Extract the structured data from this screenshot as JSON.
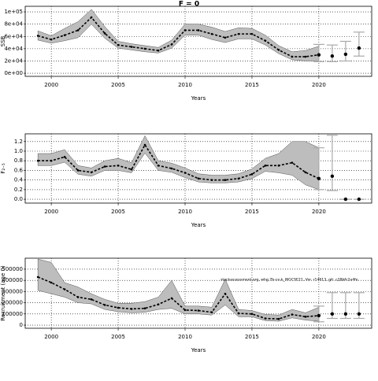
{
  "title": "F = 0",
  "chart_data": [
    {
      "type": "line",
      "y_label": "SSB",
      "x_label": "Years",
      "x": [
        1999,
        2000,
        2001,
        2002,
        2003,
        2004,
        2005,
        2006,
        2007,
        2008,
        2009,
        2010,
        2011,
        2012,
        2013,
        2014,
        2015,
        2016,
        2017,
        2018,
        2019,
        2020
      ],
      "values": [
        61000,
        55000,
        62000,
        70000,
        91000,
        65000,
        46000,
        43000,
        40000,
        37000,
        47000,
        70000,
        70000,
        64000,
        58000,
        64000,
        64000,
        53000,
        38000,
        27000,
        27000,
        30000
      ],
      "lower": [
        54000,
        49000,
        53000,
        58000,
        80000,
        57000,
        41000,
        38000,
        35000,
        33000,
        41000,
        62000,
        62000,
        55000,
        50000,
        56000,
        56000,
        46000,
        32000,
        22000,
        20000,
        20000
      ],
      "upper": [
        69000,
        61000,
        73000,
        84000,
        104000,
        76000,
        52000,
        48000,
        45000,
        42000,
        54000,
        80000,
        80000,
        75000,
        68000,
        74000,
        73000,
        62000,
        45000,
        35000,
        37000,
        44000
      ],
      "projection": {
        "x": [
          2020,
          2021,
          2022,
          2023
        ],
        "values": [
          30000,
          28000,
          31000,
          41000
        ],
        "lower": [
          19000,
          19000,
          20000,
          28000
        ],
        "upper": [
          47000,
          46000,
          52000,
          67000
        ]
      },
      "xlim": [
        1998.05,
        2023.95
      ],
      "xticks": [
        2000,
        2005,
        2010,
        2015,
        2020
      ],
      "ylim": [
        -5000,
        109000
      ],
      "yticks": [
        {
          "value": 0,
          "label": "0e+00"
        },
        {
          "value": 20000,
          "label": "2e+04"
        },
        {
          "value": 40000,
          "label": "4e+04"
        },
        {
          "value": 60000,
          "label": "6e+04"
        },
        {
          "value": 80000,
          "label": "8e+04"
        },
        {
          "value": 100000,
          "label": "1e+05"
        }
      ],
      "grid": true,
      "band_color": "#bdbdbd",
      "line_color": "#000000",
      "errorbar_color": "#a9a9a9"
    },
    {
      "type": "line",
      "y_label": "F₂₋₅",
      "x_label": "Years",
      "x": [
        1999,
        2000,
        2001,
        2002,
        2003,
        2004,
        2005,
        2006,
        2007,
        2008,
        2009,
        2010,
        2011,
        2012,
        2013,
        2014,
        2015,
        2016,
        2017,
        2018,
        2019,
        2020
      ],
      "values": [
        0.8,
        0.8,
        0.88,
        0.6,
        0.56,
        0.68,
        0.7,
        0.62,
        1.13,
        0.7,
        0.64,
        0.55,
        0.43,
        0.4,
        0.4,
        0.43,
        0.52,
        0.7,
        0.7,
        0.76,
        0.56,
        0.43
      ],
      "lower": [
        0.7,
        0.7,
        0.77,
        0.52,
        0.48,
        0.6,
        0.6,
        0.55,
        0.96,
        0.6,
        0.56,
        0.45,
        0.36,
        0.34,
        0.34,
        0.36,
        0.43,
        0.58,
        0.55,
        0.5,
        0.3,
        0.2
      ],
      "upper": [
        0.95,
        0.95,
        1.03,
        0.7,
        0.65,
        0.8,
        0.85,
        0.76,
        1.32,
        0.8,
        0.75,
        0.65,
        0.53,
        0.5,
        0.5,
        0.53,
        0.63,
        0.85,
        0.95,
        1.2,
        1.2,
        1.07
      ],
      "projection": {
        "x": [
          2020,
          2021,
          2022,
          2023
        ],
        "values": [
          0.43,
          0.48,
          0,
          0
        ],
        "lower": [
          0.2,
          0.18,
          0,
          0
        ],
        "upper": [
          1.07,
          1.33,
          0,
          0
        ]
      },
      "xlim": [
        1998.05,
        2023.95
      ],
      "xticks": [
        2000,
        2005,
        2010,
        2015,
        2020
      ],
      "ylim": [
        -0.08,
        1.36
      ],
      "yticks": [
        {
          "value": 0,
          "label": "0.0"
        },
        0.2,
        0.4,
        0.6,
        0.8,
        {
          "value": 1,
          "label": "1.0"
        },
        1.2
      ],
      "grid": true,
      "band_color": "#bdbdbd",
      "line_color": "#000000",
      "errorbar_color": "#a9a9a9"
    },
    {
      "type": "line",
      "y_label": "Recruitment (age 0)",
      "x_label": "Years",
      "x": [
        1999,
        2000,
        2001,
        2002,
        2003,
        2004,
        2005,
        2006,
        2007,
        2008,
        2009,
        2010,
        2011,
        2012,
        2013,
        2014,
        2015,
        2016,
        2017,
        2018,
        2019,
        2020
      ],
      "values": [
        430000,
        380000,
        320000,
        250000,
        230000,
        180000,
        155000,
        145000,
        150000,
        185000,
        240000,
        135000,
        130000,
        115000,
        280000,
        105000,
        100000,
        60000,
        55000,
        95000,
        75000,
        85000
      ],
      "lower": [
        310000,
        280000,
        250000,
        200000,
        190000,
        140000,
        120000,
        110000,
        115000,
        140000,
        150000,
        100000,
        100000,
        90000,
        180000,
        75000,
        75000,
        40000,
        35000,
        65000,
        45000,
        35000
      ],
      "upper": [
        590000,
        560000,
        380000,
        340000,
        280000,
        230000,
        195000,
        195000,
        210000,
        250000,
        400000,
        170000,
        170000,
        160000,
        410000,
        140000,
        130000,
        95000,
        90000,
        140000,
        110000,
        160000
      ],
      "projection": {
        "x": [
          2020,
          2021,
          2022,
          2023
        ],
        "values": [
          85000,
          100000,
          100000,
          100000
        ],
        "lower": [
          30000,
          60000,
          60000,
          60000
        ],
        "upper": [
          170000,
          290000,
          290000,
          290000
        ]
      },
      "xlim": [
        1998.05,
        2023.95
      ],
      "xticks": [
        2000,
        2005,
        2010,
        2015,
        2020
      ],
      "ylim": [
        -28000,
        598000
      ],
      "yticks": [
        0,
        100000,
        200000,
        300000,
        400000,
        500000
      ],
      "annotation": "stockassessment.org, whg.7b-ce-k_WGCSE21, Ver. r14613, git: c28bfc2a4fe",
      "grid": true,
      "band_color": "#bdbdbd",
      "line_color": "#000000",
      "errorbar_color": "#a9a9a9"
    }
  ]
}
